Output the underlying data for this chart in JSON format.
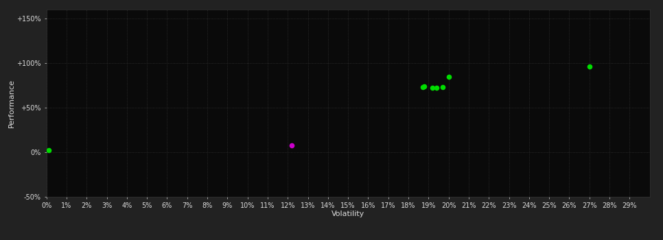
{
  "background_color": "#222222",
  "plot_bg_color": "#0a0a0a",
  "grid_color": "#333333",
  "text_color": "#dddddd",
  "xlabel": "Volatility",
  "ylabel": "Performance",
  "xlim": [
    0,
    0.3
  ],
  "ylim": [
    -0.5,
    1.6
  ],
  "ytick_values": [
    -0.5,
    0.0,
    0.5,
    1.0,
    1.5
  ],
  "ytick_labels": [
    "-50%",
    "0%",
    "+50%",
    "+100%",
    "+150%"
  ],
  "points_green": [
    [
      0.001,
      0.02
    ],
    [
      0.187,
      0.73
    ],
    [
      0.188,
      0.74
    ],
    [
      0.192,
      0.72
    ],
    [
      0.194,
      0.72
    ],
    [
      0.197,
      0.73
    ],
    [
      0.2,
      0.85
    ],
    [
      0.27,
      0.96
    ]
  ],
  "points_magenta": [
    [
      0.122,
      0.08
    ]
  ],
  "green_color": "#00dd00",
  "magenta_color": "#cc00cc",
  "marker_size": 30,
  "axis_fontsize": 8,
  "tick_fontsize": 7
}
